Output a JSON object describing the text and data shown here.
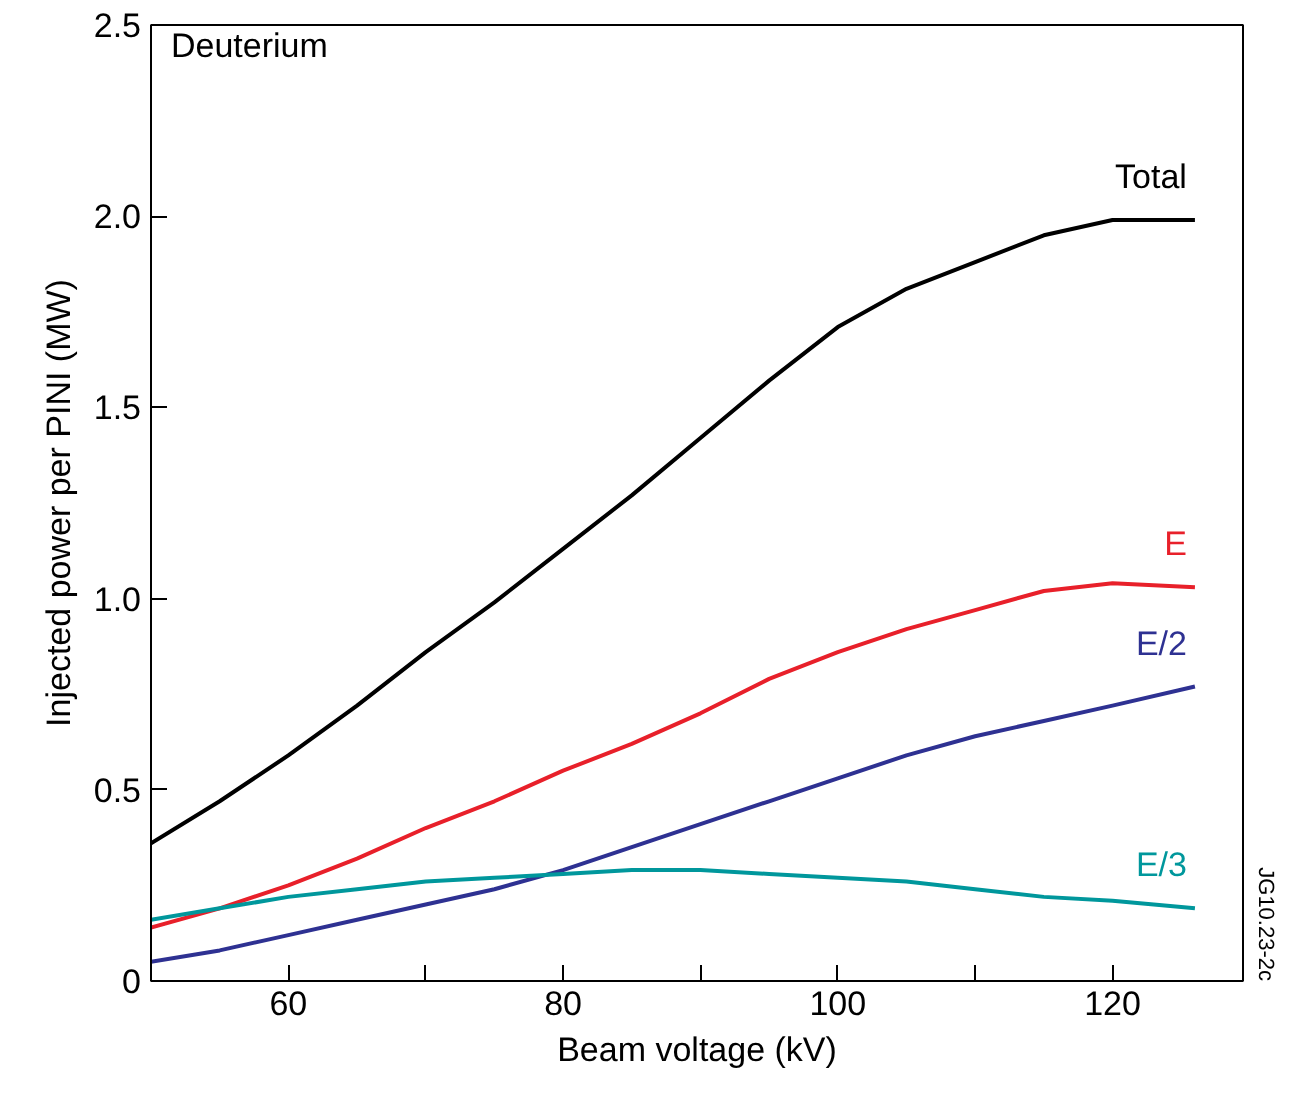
{
  "chart_data": {
    "type": "line",
    "xlabel": "Beam voltage (kV)",
    "ylabel": "Injected power per PINI (MW)",
    "x": [
      50,
      55,
      60,
      65,
      70,
      75,
      80,
      85,
      90,
      95,
      100,
      105,
      110,
      115,
      120,
      126
    ],
    "series": [
      {
        "name": "Total",
        "color": "#000000",
        "values": [
          0.36,
          0.47,
          0.59,
          0.72,
          0.86,
          0.99,
          1.13,
          1.27,
          1.42,
          1.57,
          1.71,
          1.81,
          1.88,
          1.95,
          1.99,
          1.99
        ]
      },
      {
        "name": "E",
        "color": "#e8202a",
        "values": [
          0.14,
          0.19,
          0.25,
          0.32,
          0.4,
          0.47,
          0.55,
          0.62,
          0.7,
          0.79,
          0.86,
          0.92,
          0.97,
          1.02,
          1.04,
          1.03
        ]
      },
      {
        "name": "E/2",
        "color": "#2e3192",
        "values": [
          0.05,
          0.08,
          0.12,
          0.16,
          0.2,
          0.24,
          0.29,
          0.35,
          0.41,
          0.47,
          0.53,
          0.59,
          0.64,
          0.68,
          0.72,
          0.77
        ]
      },
      {
        "name": "E/3",
        "color": "#00979c",
        "values": [
          0.16,
          0.19,
          0.22,
          0.24,
          0.26,
          0.27,
          0.28,
          0.29,
          0.29,
          0.28,
          0.27,
          0.26,
          0.24,
          0.22,
          0.21,
          0.19
        ]
      }
    ],
    "xlim": [
      50,
      129.5
    ],
    "ylim": [
      0,
      2.5
    ],
    "xticks": [
      60,
      {
        "value": 70,
        "label": null
      },
      80,
      {
        "value": 90,
        "label": null
      },
      100,
      {
        "value": 110,
        "label": null
      },
      120
    ],
    "yticks": [
      0,
      0.5,
      {
        "value": 1,
        "label": "1.0"
      },
      1.5,
      {
        "value": 2,
        "label": "2.0"
      },
      2.5
    ],
    "grid": false,
    "legend": false,
    "marker": "none",
    "line_style": "solid",
    "annotations": [
      "Deuterium",
      "JG10.23-2c"
    ]
  }
}
